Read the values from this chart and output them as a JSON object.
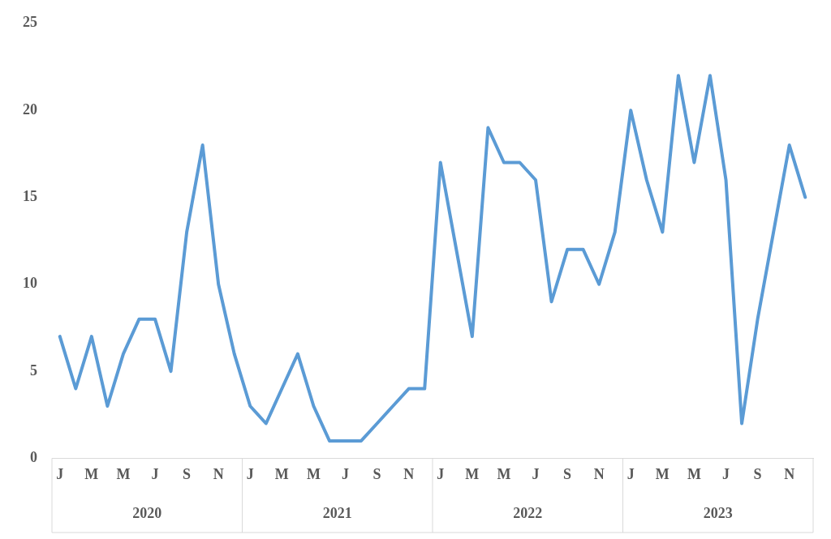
{
  "chart_data": {
    "type": "line",
    "categories": [
      "J",
      null,
      "M",
      null,
      "M",
      null,
      "J",
      null,
      "S",
      null,
      "N",
      null,
      "J",
      null,
      "M",
      null,
      "M",
      null,
      "J",
      null,
      "S",
      null,
      "N",
      null,
      "J",
      null,
      "M",
      null,
      "M",
      null,
      "J",
      null,
      "S",
      null,
      "N",
      null,
      "J",
      null,
      "M",
      null,
      "M",
      null,
      "J",
      null,
      "S",
      null,
      "N",
      null
    ],
    "series": [
      {
        "color": "#5b9bd5",
        "values": [
          7,
          4,
          7,
          3,
          6,
          8,
          8,
          5,
          13,
          18,
          10,
          6,
          3,
          2,
          4,
          6,
          3,
          1,
          1,
          1,
          2,
          3,
          4,
          4,
          17,
          12,
          7,
          19,
          17,
          17,
          16,
          9,
          12,
          12,
          10,
          13,
          20,
          16,
          13,
          22,
          17,
          22,
          16,
          2,
          8,
          13,
          18,
          15
        ]
      }
    ],
    "annotations": [
      "2020",
      "2021",
      "2022",
      "2023"
    ],
    "ylim": [
      0,
      25
    ],
    "yticks": [
      0,
      5,
      10,
      15,
      20,
      25
    ],
    "grid": false,
    "legend": false,
    "marker": "none",
    "line_style": "solid"
  }
}
